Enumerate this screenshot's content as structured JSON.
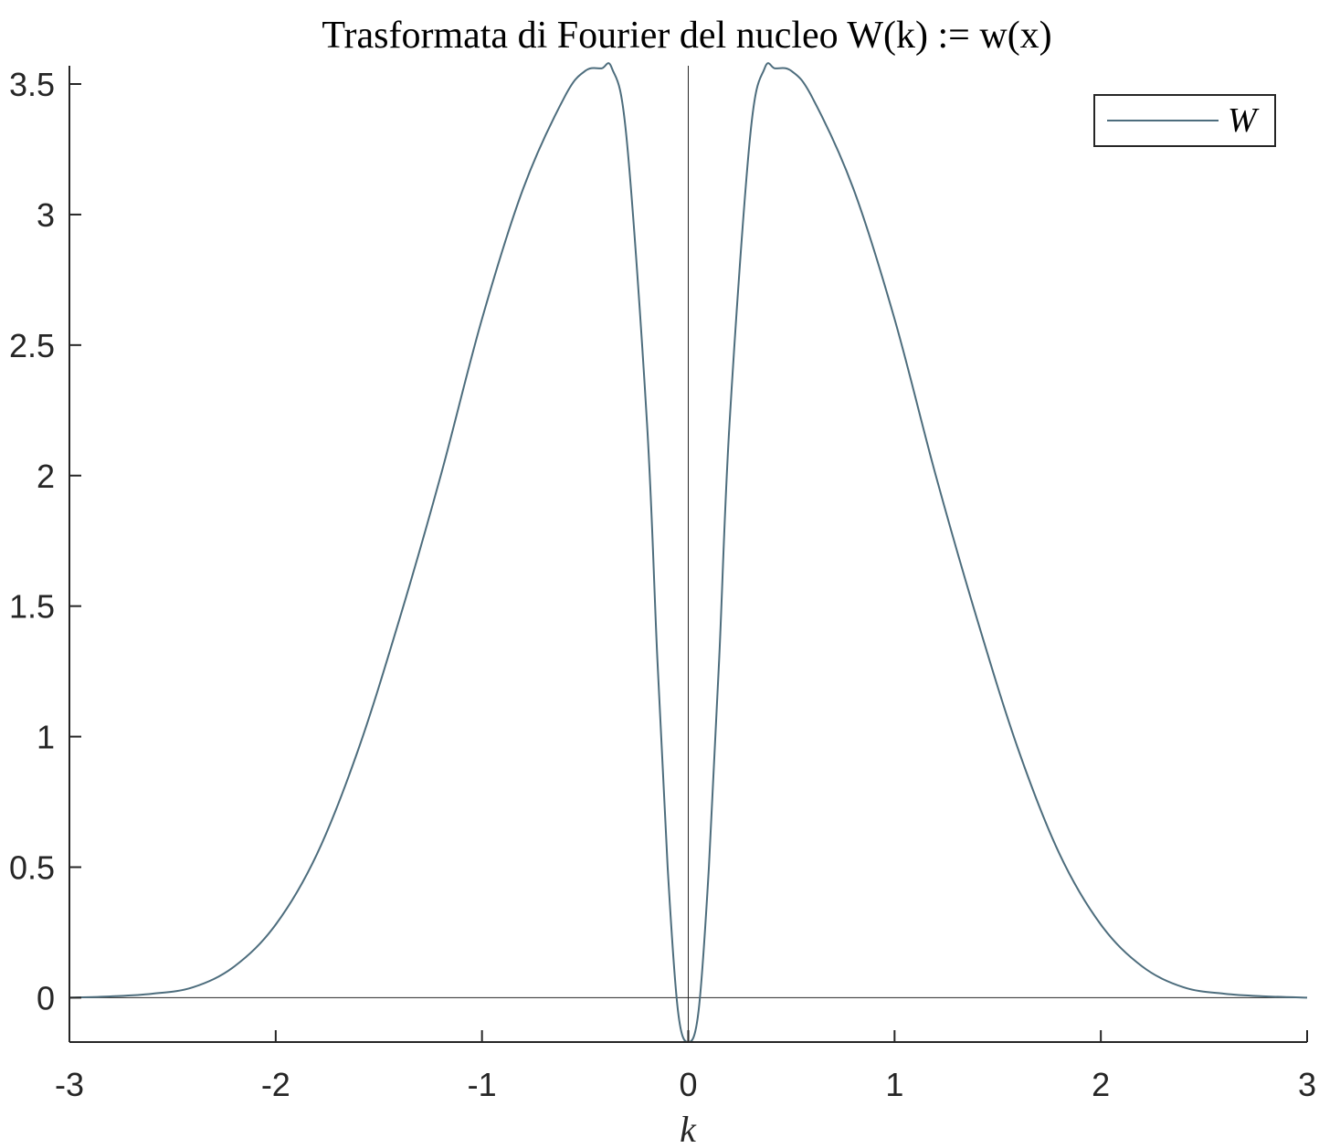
{
  "chart_data": {
    "type": "line",
    "title": "Trasformata di Fourier del nucleo W(k) := w(x)",
    "xlabel": "k",
    "ylabel": "",
    "xlim": [
      -3,
      3
    ],
    "ylim": [
      -0.17,
      3.57
    ],
    "xticks": [
      -3,
      -2,
      -1,
      0,
      1,
      2,
      3
    ],
    "xtick_labels": [
      "-3",
      "-2",
      "-1",
      "0",
      "1",
      "2",
      "3"
    ],
    "yticks": [
      0,
      0.5,
      1,
      1.5,
      2,
      2.5,
      3,
      3.5
    ],
    "ytick_labels": [
      "0",
      "0.5",
      "1",
      "1.5",
      "2",
      "2.5",
      "3",
      "3.5"
    ],
    "grid": false,
    "legend_position": "top-right",
    "reference_lines": [
      "x = 0",
      "y = 0"
    ],
    "series": [
      {
        "name": "W",
        "color": "#4d6d7d",
        "x": [
          -3,
          -2.8,
          -2.6,
          -2.4,
          -2.2,
          -2.0,
          -1.8,
          -1.6,
          -1.4,
          -1.2,
          -1.0,
          -0.8,
          -0.6,
          -0.5,
          -0.42,
          -0.37,
          -0.3,
          -0.2,
          -0.15,
          -0.1,
          -0.05,
          0,
          0.05,
          0.1,
          0.15,
          0.2,
          0.3,
          0.37,
          0.42,
          0.5,
          0.6,
          0.8,
          1.0,
          1.2,
          1.4,
          1.6,
          1.8,
          2.0,
          2.2,
          2.4,
          2.6,
          2.8,
          3
        ],
        "y": [
          0.0,
          0.005,
          0.015,
          0.04,
          0.12,
          0.28,
          0.55,
          0.95,
          1.45,
          2.0,
          2.6,
          3.1,
          3.45,
          3.55,
          3.56,
          3.56,
          3.3,
          2.2,
          1.3,
          0.5,
          -0.05,
          -0.17,
          -0.05,
          0.5,
          1.3,
          2.2,
          3.3,
          3.56,
          3.56,
          3.55,
          3.45,
          3.1,
          2.6,
          2.0,
          1.45,
          0.95,
          0.55,
          0.28,
          0.12,
          0.04,
          0.015,
          0.005,
          0.0
        ]
      }
    ]
  }
}
